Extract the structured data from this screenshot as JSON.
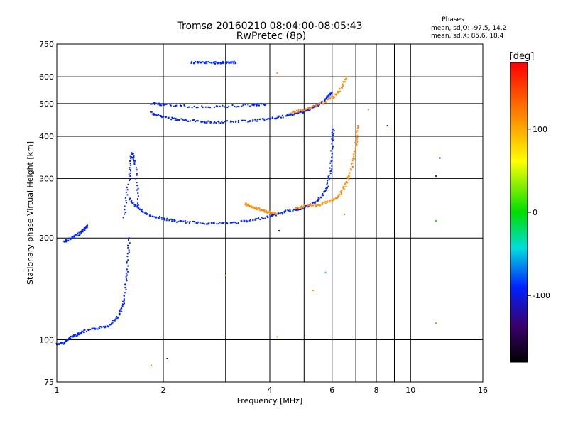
{
  "header": {
    "title_line1": "Tromsø 20160210 08:04:00-08:05:43",
    "title_line2": "RwPretec (8p)",
    "phase_title": "Phases",
    "phase_o": "mean, sd,O: -97.5, 14.2",
    "phase_x": "mean, sd,X: 85.6, 18.4"
  },
  "colorbar": {
    "label": "[deg]",
    "ticks": [
      "100",
      "0",
      "-100"
    ],
    "tick_values": [
      100,
      0,
      -100
    ],
    "range": [
      -180,
      180
    ]
  },
  "colors": {
    "o_trace": "#2233dd",
    "x_trace": "#e6e600",
    "grid": "#000000"
  },
  "chart_data": {
    "type": "scatter",
    "title": "Tromsø 20160210 08:04:00-08:05:43",
    "subtitle": "RwPretec (8p)",
    "xlabel": "Frequency [MHz]",
    "ylabel": "Stationary phase Virtual Height [km]",
    "x_scale": "log",
    "y_scale": "log",
    "xlim": [
      1,
      16
    ],
    "ylim": [
      75,
      750
    ],
    "x_ticks": [
      1,
      2,
      4,
      6,
      8,
      10,
      16
    ],
    "x_tick_labels": [
      "1",
      "2",
      "4",
      "6",
      "8",
      "10",
      "16"
    ],
    "x_grid": [
      2,
      3,
      4,
      5,
      6,
      7,
      8,
      9,
      10
    ],
    "y_ticks": [
      75,
      100,
      200,
      300,
      400,
      500,
      600,
      750
    ],
    "y_tick_labels": [
      "75",
      "100",
      "200",
      "300",
      "400",
      "500",
      "600",
      "750"
    ],
    "y_grid": [
      100,
      200,
      300,
      400,
      500,
      600
    ],
    "grid": true,
    "traces": [
      {
        "phase": -100,
        "x": [
          1.0,
          1.05,
          1.1,
          1.15,
          1.2,
          1.3,
          1.4,
          1.5,
          1.55,
          1.58,
          1.6
        ],
        "y": [
          97,
          98,
          102,
          104,
          106,
          108,
          110,
          118,
          130,
          160,
          200
        ]
      },
      {
        "phase": -100,
        "x": [
          1.05,
          1.1,
          1.15,
          1.2,
          1.22
        ],
        "y": [
          195,
          200,
          205,
          212,
          218
        ]
      },
      {
        "phase": -100,
        "x": [
          1.55,
          1.6,
          1.63,
          1.67,
          1.7
        ],
        "y": [
          230,
          300,
          360,
          330,
          250
        ]
      },
      {
        "phase": -100,
        "x": [
          1.6,
          1.7,
          1.8,
          2.0,
          2.2,
          2.5,
          2.8,
          3.2,
          3.6,
          4.0,
          4.4
        ],
        "y": [
          260,
          245,
          235,
          228,
          224,
          222,
          221,
          222,
          226,
          232,
          238
        ]
      },
      {
        "phase": -100,
        "x": [
          4.4,
          4.8,
          5.2,
          5.5,
          5.8,
          5.95,
          6.0,
          6.05
        ],
        "y": [
          240,
          243,
          250,
          260,
          280,
          320,
          380,
          420
        ]
      },
      {
        "phase": -100,
        "x": [
          1.85,
          2.0,
          2.2,
          2.5,
          2.8,
          3.2,
          3.6,
          4.0,
          4.4,
          4.8,
          5.2
        ],
        "y": [
          470,
          455,
          448,
          443,
          440,
          442,
          445,
          450,
          458,
          468,
          480
        ]
      },
      {
        "phase": -100,
        "x": [
          5.2,
          5.5,
          5.8,
          6.0
        ],
        "y": [
          485,
          495,
          520,
          540
        ]
      },
      {
        "phase": -100,
        "x": [
          2.4,
          2.6,
          2.8,
          3.0,
          3.2
        ],
        "y": [
          660,
          660,
          660,
          660,
          662
        ]
      },
      {
        "phase": -100,
        "x": [
          1.85,
          2.0,
          2.4,
          3.0,
          3.6,
          3.9
        ],
        "y": [
          500,
          495,
          490,
          490,
          495,
          498
        ]
      },
      {
        "phase": 100,
        "x": [
          4.7,
          5.0,
          5.5,
          6.0,
          6.3,
          6.6,
          6.8,
          7.0,
          7.1
        ],
        "y": [
          245,
          248,
          250,
          258,
          268,
          290,
          320,
          370,
          430
        ]
      },
      {
        "phase": 100,
        "x": [
          4.6,
          5.0,
          5.5,
          6.0,
          6.3,
          6.6
        ],
        "y": [
          470,
          480,
          495,
          520,
          545,
          600
        ]
      },
      {
        "phase": 130,
        "x": [
          3.4,
          3.6,
          3.8,
          4.0,
          4.2
        ],
        "y": [
          252,
          247,
          242,
          238,
          236
        ]
      }
    ],
    "outliers": [
      {
        "x": 11.8,
        "y": 305,
        "phase": -100
      },
      {
        "x": 12.1,
        "y": 345,
        "phase": -100
      },
      {
        "x": 11.8,
        "y": 225,
        "phase": 10
      },
      {
        "x": 11.8,
        "y": 112,
        "phase": 110
      },
      {
        "x": 8.6,
        "y": 430,
        "phase": -100
      },
      {
        "x": 7.6,
        "y": 480,
        "phase": 110
      },
      {
        "x": 4.2,
        "y": 615,
        "phase": 140
      },
      {
        "x": 4.25,
        "y": 210,
        "phase": -170
      },
      {
        "x": 5.3,
        "y": 140,
        "phase": 140
      },
      {
        "x": 5.75,
        "y": 158,
        "phase": -40
      },
      {
        "x": 4.2,
        "y": 102,
        "phase": 140
      },
      {
        "x": 2.05,
        "y": 88,
        "phase": -120
      },
      {
        "x": 1.85,
        "y": 84,
        "phase": 110
      },
      {
        "x": 3.0,
        "y": 155,
        "phase": 110
      },
      {
        "x": 6.5,
        "y": 235,
        "phase": 110
      }
    ]
  }
}
